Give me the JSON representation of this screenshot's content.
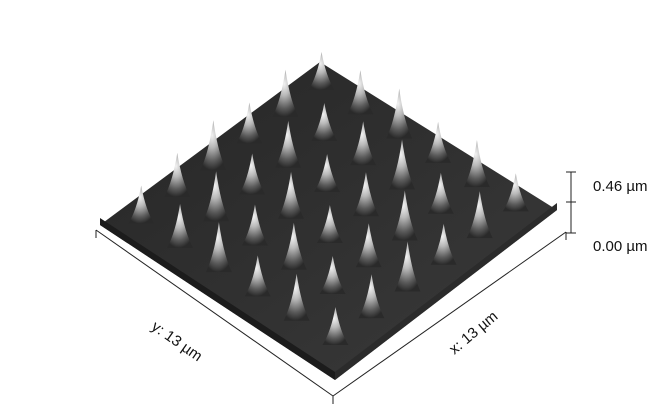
{
  "scale_bar": {
    "z_max": "0.46 µm",
    "z_min": "0.00 µm"
  },
  "axes": {
    "y_label": "y: 13 µm",
    "x_label": "x: 13 µm"
  },
  "surface": {
    "colormap": "grayscale",
    "peak_grid": "6x6"
  }
}
